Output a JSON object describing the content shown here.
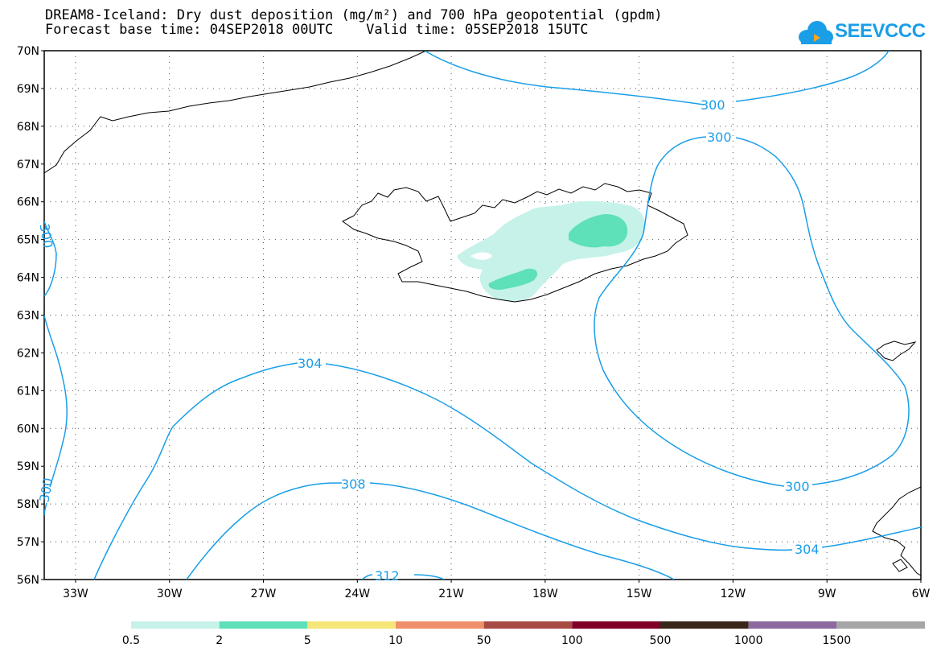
{
  "header": {
    "title_line1": "DREAM8-Iceland: Dry dust deposition (mg/m²) and 700 hPa geopotential (gpdm)",
    "title_line2": "Forecast base time: 04SEP2018 00UTC    Valid time: 05SEP2018 15UTC"
  },
  "logo": {
    "text": "SEEVCCC",
    "color": "#1a9ee8",
    "icon": "cloud-icon"
  },
  "axes": {
    "lat_labels": [
      "70N",
      "69N",
      "68N",
      "67N",
      "66N",
      "65N",
      "64N",
      "63N",
      "62N",
      "61N",
      "60N",
      "59N",
      "58N",
      "57N",
      "56N"
    ],
    "lon_labels": [
      "33W",
      "30W",
      "27W",
      "24W",
      "21W",
      "18W",
      "15W",
      "12W",
      "9W",
      "6W"
    ]
  },
  "contours": {
    "color": "#1a9ee8",
    "labels": [
      "300",
      "300",
      "304",
      "308",
      "312",
      "300",
      "304",
      "300",
      "300"
    ]
  },
  "legend": {
    "colors": [
      "#c6f2ea",
      "#5ee0b8",
      "#f5e678",
      "#f0906a",
      "#a84a44",
      "#800028",
      "#3a2618",
      "#8c6aa0",
      "#a6a6a6"
    ],
    "labels": [
      "0.5",
      "2",
      "5",
      "10",
      "50",
      "100",
      "500",
      "1000",
      "1500"
    ]
  },
  "deposition_colors": {
    "low": "#c6f2ea",
    "mid": "#5ee0b8"
  }
}
